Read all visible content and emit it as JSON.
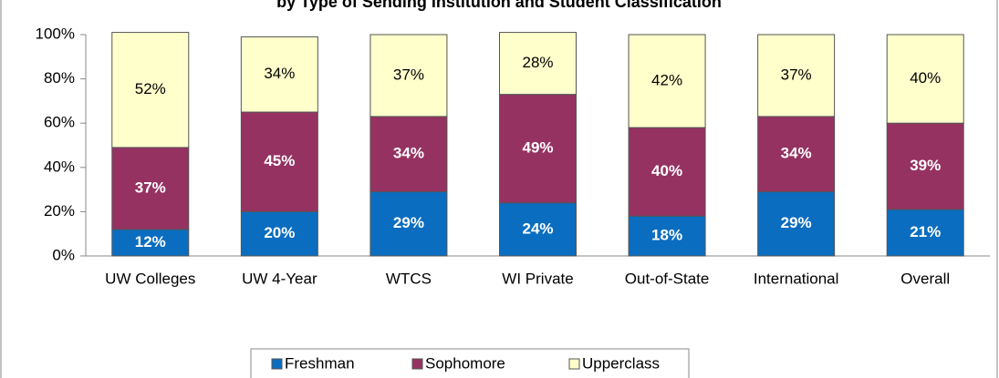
{
  "chart_data": {
    "type": "stacked_bar",
    "title": "by Type of Sending Institution and Student Classification",
    "categories": [
      "UW Colleges",
      "UW 4-Year",
      "WTCS",
      "WI Private",
      "Out-of-State",
      "International",
      "Overall"
    ],
    "series": [
      {
        "name": "Freshman",
        "color": "#0b6dbf",
        "values": [
          12,
          20,
          29,
          24,
          18,
          29,
          21
        ],
        "value_labels": [
          "12%",
          "20%",
          "29%",
          "24%",
          "18%",
          "29%",
          "21%"
        ]
      },
      {
        "name": "Sophomore",
        "color": "#953262",
        "values": [
          37,
          45,
          34,
          49,
          40,
          34,
          39
        ],
        "value_labels": [
          "37%",
          "45%",
          "34%",
          "49%",
          "40%",
          "34%",
          "39%"
        ]
      },
      {
        "name": "Upperclass",
        "color": "#ffffcc",
        "values": [
          52,
          34,
          37,
          28,
          42,
          37,
          40
        ],
        "value_labels": [
          "52%",
          "34%",
          "37%",
          "28%",
          "42%",
          "37%",
          "40%"
        ]
      }
    ],
    "ylim": [
      0,
      100
    ],
    "yticks": [
      {
        "value": 0,
        "label": "0%"
      },
      {
        "value": 20,
        "label": "20%"
      },
      {
        "value": 40,
        "label": "40%"
      },
      {
        "value": 60,
        "label": "60%"
      },
      {
        "value": 80,
        "label": "80%"
      },
      {
        "value": 100,
        "label": "100%"
      }
    ],
    "legend": "bottom"
  }
}
